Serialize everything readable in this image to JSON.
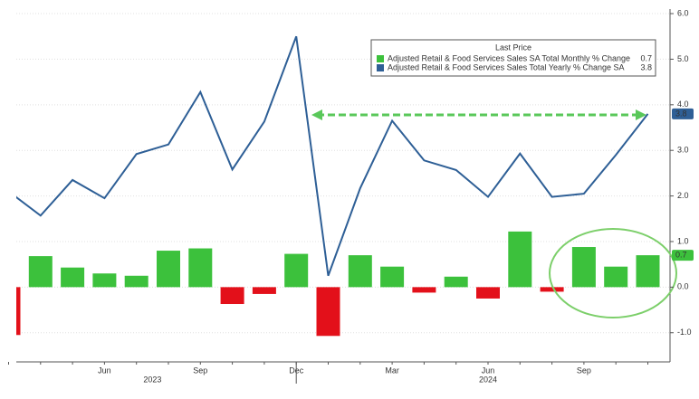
{
  "chart_data": {
    "type": "bar",
    "categories": [
      null,
      null,
      null,
      "Jun",
      null,
      null,
      "Sep",
      null,
      null,
      "Dec",
      null,
      null,
      "Mar",
      null,
      null,
      "Jun",
      null,
      null,
      "Sep",
      null,
      null
    ],
    "x_groups": [
      {
        "label": "2023",
        "start": 0,
        "end": 9
      },
      {
        "label": "2024",
        "start": 10,
        "end": 20
      }
    ],
    "legend_title": "Last Price",
    "series": [
      {
        "name": "Adjusted Retail & Food Services Sales SA Total Monthly % Change",
        "type": "bar",
        "color": "#3cc13c",
        "negative_color": "#e3101a",
        "values": [
          -1.05,
          0.68,
          0.43,
          0.3,
          0.25,
          0.8,
          0.85,
          -0.37,
          -0.15,
          0.73,
          -1.07,
          0.7,
          0.45,
          -0.12,
          0.23,
          -0.25,
          1.22,
          -0.1,
          0.88,
          0.45,
          0.7
        ]
      },
      {
        "name": "Adjusted Retail & Food Services Sales Total Yearly % Change SA",
        "type": "line",
        "color": "#2e5f96",
        "values": [
          2.1,
          1.57,
          2.35,
          1.95,
          2.92,
          3.13,
          4.28,
          2.58,
          3.63,
          5.5,
          0.25,
          2.17,
          3.65,
          2.78,
          2.57,
          1.98,
          2.93,
          1.98,
          2.05,
          2.9,
          3.8
        ]
      }
    ],
    "ylim": [
      -1.64,
      6.1
    ],
    "yticks": [
      {
        "value": -1,
        "label": "-1.0"
      },
      {
        "value": 0,
        "label": "0.0"
      },
      {
        "value": 1,
        "label": "1.0"
      },
      {
        "value": 2,
        "label": "2.0"
      },
      {
        "value": 3,
        "label": "3.0"
      },
      {
        "value": 4,
        "label": "4.0"
      },
      {
        "value": 5,
        "label": "5.0"
      },
      {
        "value": 6,
        "label": "6.0"
      }
    ]
  }
}
